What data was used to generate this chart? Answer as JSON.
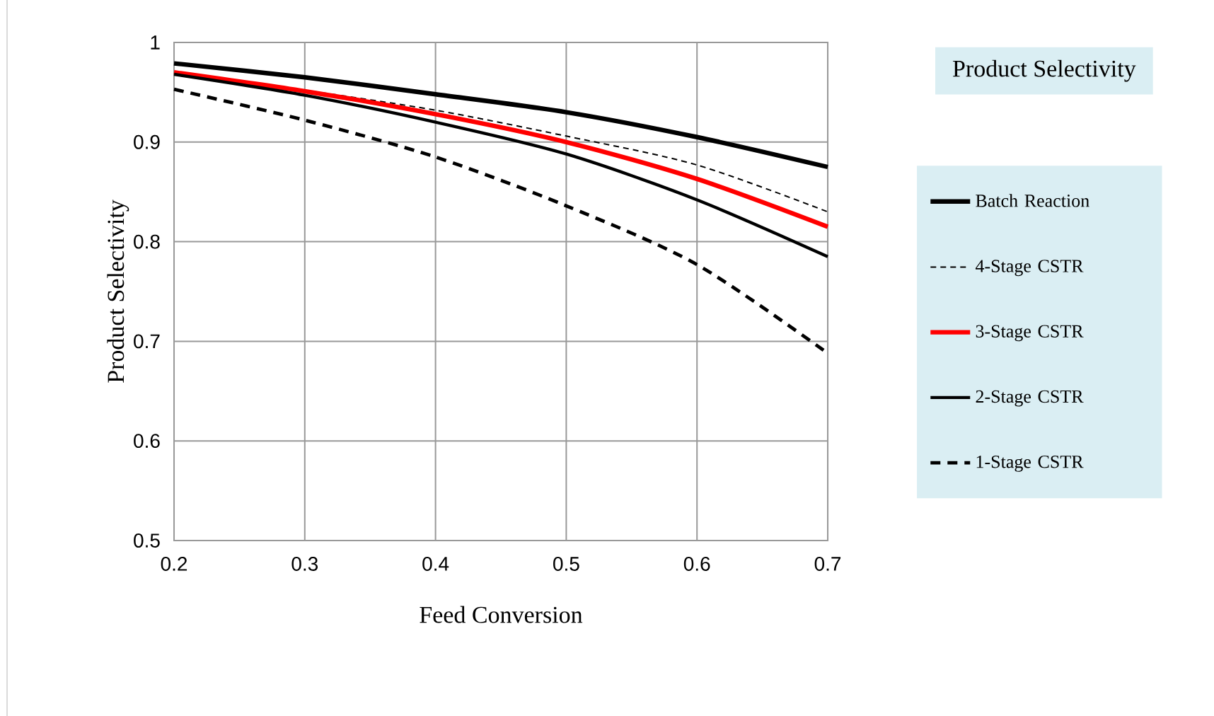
{
  "chart_data": {
    "type": "line",
    "title": "Product Selectivity",
    "xlabel": "Feed Conversion",
    "ylabel": "Product Selectivity",
    "x": [
      0.2,
      0.3,
      0.4,
      0.5,
      0.6,
      0.7
    ],
    "series": [
      {
        "name": "Batch Reaction",
        "color": "#000000",
        "line_style": "solid",
        "values": [
          0.979,
          0.965,
          0.948,
          0.93,
          0.905,
          0.875
        ]
      },
      {
        "name": "4-Stage CSTR",
        "color": "#000000",
        "line_style": "dashed",
        "values": [
          0.97,
          0.952,
          0.932,
          0.906,
          0.877,
          0.83
        ]
      },
      {
        "name": "3-Stage CSTR",
        "color": "#ff0000",
        "line_style": "solid",
        "values": [
          0.97,
          0.951,
          0.928,
          0.9,
          0.863,
          0.815
        ]
      },
      {
        "name": "2-Stage CSTR",
        "color": "#000000",
        "line_style": "solid",
        "values": [
          0.968,
          0.947,
          0.92,
          0.888,
          0.842,
          0.785
        ]
      },
      {
        "name": "1-Stage CSTR",
        "color": "#000000",
        "line_style": "dashed",
        "values": [
          0.953,
          0.922,
          0.885,
          0.836,
          0.777,
          0.688
        ]
      }
    ],
    "xlim": [
      0.2,
      0.7
    ],
    "ylim": [
      0.5,
      1
    ],
    "xticks": [
      0.2,
      0.3,
      0.4,
      0.5,
      0.6,
      0.7
    ],
    "yticks": [
      0.5,
      0.6,
      0.7,
      0.8,
      0.9,
      1
    ],
    "grid": true,
    "legend": "right",
    "marker": "none"
  }
}
